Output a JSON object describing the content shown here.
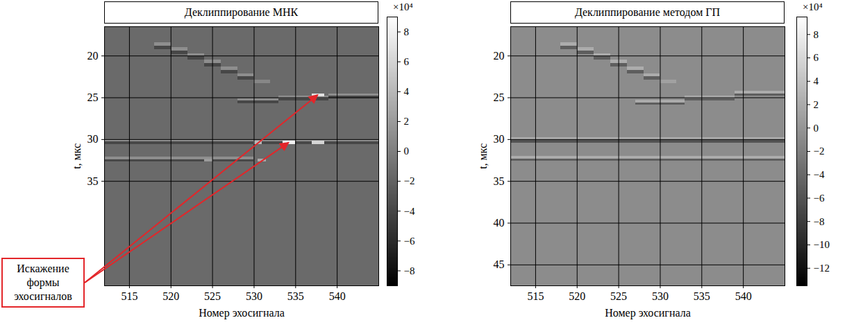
{
  "chart_data": [
    {
      "type": "heatmap",
      "title": "Деклиппирование МНК",
      "x_label": "Номер эхосигнала",
      "y_label": "t, мкс",
      "xlim": [
        512,
        545
      ],
      "xticks": [
        515,
        520,
        525,
        530,
        535,
        540
      ],
      "ylim": [
        16.5,
        47.5
      ],
      "yticks": [
        20,
        25,
        30,
        35
      ],
      "grid": true,
      "colorbar": {
        "label": "×10⁴",
        "range": [
          -9,
          9
        ],
        "ticks": [
          8,
          6,
          4,
          2,
          0,
          -2,
          -4,
          -6,
          -8
        ]
      },
      "cells": [
        {
          "x1": 512,
          "x2": 545,
          "t1": 16.5,
          "t2": 47.5,
          "value": -1.5
        },
        {
          "x1": 518,
          "x2": 520,
          "t1": 18.4,
          "t2": 18.8,
          "value": 1
        },
        {
          "x1": 518,
          "x2": 520,
          "t1": 18.8,
          "t2": 19.2,
          "value": -4
        },
        {
          "x1": 520,
          "x2": 522,
          "t1": 19.0,
          "t2": 19.4,
          "value": 1
        },
        {
          "x1": 520,
          "x2": 522,
          "t1": 19.4,
          "t2": 19.8,
          "value": -4
        },
        {
          "x1": 522,
          "x2": 524,
          "t1": 19.7,
          "t2": 20.1,
          "value": 1
        },
        {
          "x1": 522,
          "x2": 524,
          "t1": 20.1,
          "t2": 20.5,
          "value": -4
        },
        {
          "x1": 524,
          "x2": 526,
          "t1": 20.5,
          "t2": 20.9,
          "value": 1
        },
        {
          "x1": 524,
          "x2": 526,
          "t1": 20.9,
          "t2": 21.3,
          "value": -4
        },
        {
          "x1": 526,
          "x2": 528,
          "t1": 21.3,
          "t2": 21.7,
          "value": 1
        },
        {
          "x1": 526,
          "x2": 528,
          "t1": 21.7,
          "t2": 22.1,
          "value": -4
        },
        {
          "x1": 528,
          "x2": 530,
          "t1": 22.1,
          "t2": 22.5,
          "value": 1
        },
        {
          "x1": 528,
          "x2": 530,
          "t1": 22.5,
          "t2": 22.9,
          "value": -4
        },
        {
          "x1": 530,
          "x2": 532,
          "t1": 22.9,
          "t2": 23.3,
          "value": 0.5
        },
        {
          "x1": 528,
          "x2": 533,
          "t1": 25.1,
          "t2": 25.4,
          "value": 1
        },
        {
          "x1": 528,
          "x2": 533,
          "t1": 25.4,
          "t2": 25.7,
          "value": -4
        },
        {
          "x1": 533,
          "x2": 539,
          "t1": 24.8,
          "t2": 25.1,
          "value": 1
        },
        {
          "x1": 533,
          "x2": 539,
          "t1": 25.1,
          "t2": 25.4,
          "value": -4
        },
        {
          "x1": 539,
          "x2": 545,
          "t1": 24.5,
          "t2": 24.8,
          "value": 1
        },
        {
          "x1": 539,
          "x2": 545,
          "t1": 24.8,
          "t2": 25.1,
          "value": -4
        },
        {
          "x1": 537,
          "x2": 538.5,
          "t1": 24.5,
          "t2": 24.9,
          "value": 7
        },
        {
          "x1": 512,
          "x2": 545,
          "t1": 30.0,
          "t2": 30.3,
          "value": 1
        },
        {
          "x1": 512,
          "x2": 545,
          "t1": 30.3,
          "t2": 30.6,
          "value": -4
        },
        {
          "x1": 530,
          "x2": 531,
          "t1": 30.2,
          "t2": 30.6,
          "value": 4
        },
        {
          "x1": 533.5,
          "x2": 535,
          "t1": 30.2,
          "t2": 30.6,
          "value": 8
        },
        {
          "x1": 537,
          "x2": 538.5,
          "t1": 30.2,
          "t2": 30.6,
          "value": 6
        },
        {
          "x1": 512,
          "x2": 530,
          "t1": 32.1,
          "t2": 32.4,
          "value": 1
        },
        {
          "x1": 512,
          "x2": 530,
          "t1": 32.4,
          "t2": 32.7,
          "value": -4
        },
        {
          "x1": 524,
          "x2": 525,
          "t1": 32.3,
          "t2": 32.7,
          "value": 2
        },
        {
          "x1": 530.5,
          "x2": 531.5,
          "t1": 32.3,
          "t2": 32.7,
          "value": 3
        }
      ],
      "annotation": {
        "text": [
          "Искажение",
          "формы",
          "эхосигналов"
        ],
        "points": [
          [
            537.7,
            24.7
          ],
          [
            534.2,
            30.4
          ]
        ]
      }
    },
    {
      "type": "heatmap",
      "title": "Деклиппирование методом ГП",
      "x_label": "Номер эхосигнала",
      "y_label": "t, мкс",
      "xlim": [
        512,
        545
      ],
      "xticks": [
        515,
        520,
        525,
        530,
        535,
        540
      ],
      "ylim": [
        16.5,
        47.5
      ],
      "yticks": [
        20,
        25,
        30,
        35,
        40,
        45
      ],
      "grid": true,
      "colorbar": {
        "label": "×10⁴",
        "range": [
          -13.5,
          9.5
        ],
        "ticks": [
          8,
          6,
          4,
          2,
          0,
          -2,
          -4,
          -6,
          -8,
          -10,
          -12
        ]
      },
      "cells": [
        {
          "x1": 512,
          "x2": 545,
          "t1": 16.5,
          "t2": 47.5,
          "value": -0.9
        },
        {
          "x1": 518,
          "x2": 520,
          "t1": 18.4,
          "t2": 18.8,
          "value": 2
        },
        {
          "x1": 518,
          "x2": 520,
          "t1": 18.8,
          "t2": 19.2,
          "value": -5
        },
        {
          "x1": 520,
          "x2": 522,
          "t1": 19.0,
          "t2": 19.4,
          "value": 2
        },
        {
          "x1": 520,
          "x2": 522,
          "t1": 19.4,
          "t2": 19.8,
          "value": -5
        },
        {
          "x1": 522,
          "x2": 524,
          "t1": 19.7,
          "t2": 20.1,
          "value": 2
        },
        {
          "x1": 522,
          "x2": 524,
          "t1": 20.1,
          "t2": 20.5,
          "value": -5
        },
        {
          "x1": 524,
          "x2": 526,
          "t1": 20.5,
          "t2": 20.9,
          "value": 2
        },
        {
          "x1": 524,
          "x2": 526,
          "t1": 20.9,
          "t2": 21.3,
          "value": -5
        },
        {
          "x1": 526,
          "x2": 528,
          "t1": 21.3,
          "t2": 21.7,
          "value": 2
        },
        {
          "x1": 526,
          "x2": 528,
          "t1": 21.7,
          "t2": 22.1,
          "value": -5
        },
        {
          "x1": 528,
          "x2": 530,
          "t1": 22.1,
          "t2": 22.5,
          "value": 2
        },
        {
          "x1": 528,
          "x2": 530,
          "t1": 22.5,
          "t2": 22.9,
          "value": -5
        },
        {
          "x1": 530,
          "x2": 532,
          "t1": 22.9,
          "t2": 23.3,
          "value": 1
        },
        {
          "x1": 527,
          "x2": 533,
          "t1": 25.3,
          "t2": 25.6,
          "value": 2
        },
        {
          "x1": 527,
          "x2": 533,
          "t1": 25.6,
          "t2": 25.9,
          "value": -5
        },
        {
          "x1": 533,
          "x2": 539,
          "t1": 24.8,
          "t2": 25.1,
          "value": 2
        },
        {
          "x1": 533,
          "x2": 539,
          "t1": 25.1,
          "t2": 25.4,
          "value": -5
        },
        {
          "x1": 539,
          "x2": 545,
          "t1": 24.2,
          "t2": 24.5,
          "value": 2
        },
        {
          "x1": 539,
          "x2": 545,
          "t1": 24.5,
          "t2": 24.8,
          "value": -5
        },
        {
          "x1": 512,
          "x2": 545,
          "t1": 29.8,
          "t2": 30.1,
          "value": 2
        },
        {
          "x1": 512,
          "x2": 545,
          "t1": 30.1,
          "t2": 30.4,
          "value": -6
        },
        {
          "x1": 512,
          "x2": 545,
          "t1": 32.0,
          "t2": 32.3,
          "value": 2
        },
        {
          "x1": 512,
          "x2": 545,
          "t1": 32.3,
          "t2": 32.6,
          "value": -5
        }
      ]
    }
  ]
}
